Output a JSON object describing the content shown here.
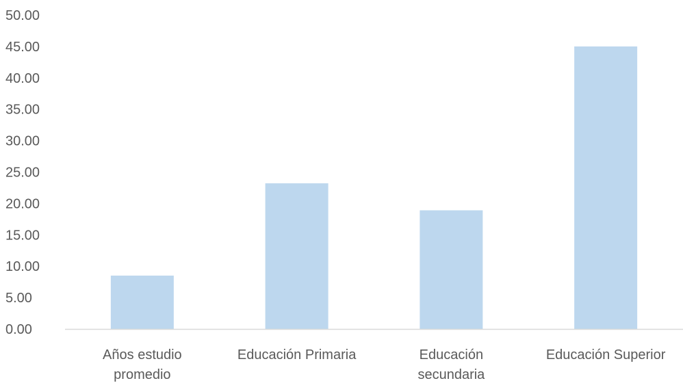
{
  "chart_data": {
    "type": "bar",
    "title": "",
    "xlabel": "",
    "ylabel": "",
    "categories": [
      [
        "Años estudio",
        "promedio"
      ],
      [
        "Educación Primaria"
      ],
      [
        "Educación",
        "secundaria"
      ],
      [
        "Educación Superior"
      ]
    ],
    "values": [
      8.5,
      23.2,
      18.9,
      45.0
    ],
    "ylim": [
      0,
      50
    ],
    "yticks": [
      "0.00",
      "5.00",
      "10.00",
      "15.00",
      "20.00",
      "25.00",
      "30.00",
      "35.00",
      "40.00",
      "45.00",
      "50.00"
    ],
    "ytick_values": [
      0,
      5,
      10,
      15,
      20,
      25,
      30,
      35,
      40,
      45,
      50
    ],
    "grid": false,
    "legend": "none",
    "colors": {
      "bar": "#BDD7EE",
      "axis": "#D9D9D9",
      "text": "#595959"
    }
  }
}
